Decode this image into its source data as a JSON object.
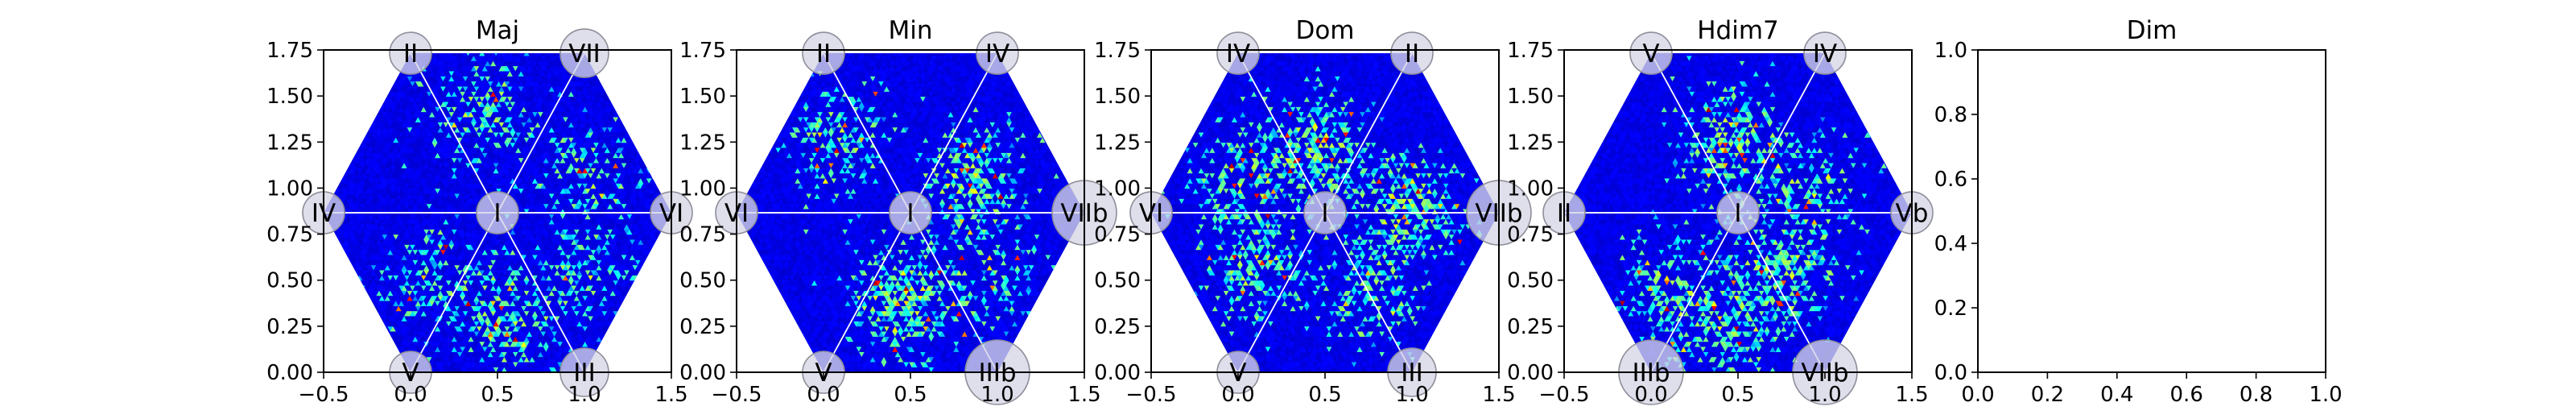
{
  "chart_data": [
    {
      "type": "heatmap",
      "title": "Maj",
      "xlim": [
        -0.5,
        1.5
      ],
      "ylim": [
        0.0,
        1.75
      ],
      "xticks": [
        "−0.5",
        "0.0",
        "0.5",
        "1.0",
        "1.5"
      ],
      "yticks": [
        "0.00",
        "0.25",
        "0.50",
        "0.75",
        "1.00",
        "1.25",
        "1.50",
        "1.75"
      ],
      "center_label": "I",
      "vertex_labels": [
        "II",
        "VII",
        "VI",
        "III",
        "V",
        "IV"
      ],
      "colormap": "jet",
      "hotspots": [
        {
          "x": 0.38,
          "y": 1.42,
          "w": 1.0
        },
        {
          "x": 1.03,
          "y": 1.05,
          "w": 0.8
        },
        {
          "x": 0.55,
          "y": 0.3,
          "w": 1.2
        },
        {
          "x": 0.1,
          "y": 0.5,
          "w": 0.8
        },
        {
          "x": 1.0,
          "y": 0.55,
          "w": 0.7
        }
      ]
    },
    {
      "type": "heatmap",
      "title": "Min",
      "xlim": [
        -0.5,
        1.5
      ],
      "ylim": [
        0.0,
        1.75
      ],
      "xticks": [
        "−0.5",
        "0.0",
        "0.5",
        "1.0",
        "1.5"
      ],
      "yticks": [
        "0.00",
        "0.25",
        "0.50",
        "0.75",
        "1.00",
        "1.25",
        "1.50",
        "1.75"
      ],
      "center_label": "I",
      "vertex_labels": [
        "II",
        "IV",
        "VIIb",
        "IIIb",
        "V",
        "VI"
      ],
      "colormap": "jet",
      "hotspots": [
        {
          "x": 0.45,
          "y": 0.4,
          "w": 1.6
        },
        {
          "x": 0.85,
          "y": 1.05,
          "w": 1.4
        },
        {
          "x": 0.1,
          "y": 1.25,
          "w": 1.0
        },
        {
          "x": 0.95,
          "y": 0.55,
          "w": 0.8
        }
      ]
    },
    {
      "type": "heatmap",
      "title": "Dom",
      "xlim": [
        -0.5,
        1.5
      ],
      "ylim": [
        0.0,
        1.75
      ],
      "xticks": [
        "−0.5",
        "0.0",
        "0.5",
        "1.0",
        "1.5"
      ],
      "yticks": [
        "0.00",
        "0.25",
        "0.50",
        "0.75",
        "1.00",
        "1.25",
        "1.50",
        "1.75"
      ],
      "center_label": "I",
      "vertex_labels": [
        "IV",
        "II",
        "VIIb",
        "III",
        "V",
        "VI"
      ],
      "colormap": "jet",
      "hotspots": [
        {
          "x": 0.45,
          "y": 1.2,
          "w": 1.5
        },
        {
          "x": 0.1,
          "y": 0.55,
          "w": 1.3
        },
        {
          "x": 1.0,
          "y": 0.9,
          "w": 1.3
        },
        {
          "x": 0.75,
          "y": 0.45,
          "w": 1.0
        },
        {
          "x": 0.0,
          "y": 1.05,
          "w": 1.0
        }
      ]
    },
    {
      "type": "heatmap",
      "title": "Hdim7",
      "xlim": [
        -0.5,
        1.5
      ],
      "ylim": [
        0.0,
        1.75
      ],
      "xticks": [
        "−0.5",
        "0.0",
        "0.5",
        "1.0",
        "1.5"
      ],
      "yticks": [
        "0.00",
        "0.25",
        "0.50",
        "0.75",
        "1.00",
        "1.25",
        "1.50",
        "1.75"
      ],
      "center_label": "I",
      "vertex_labels": [
        "V",
        "IV",
        "Vb",
        "VIIb",
        "IIIb",
        "II"
      ],
      "colormap": "jet",
      "hotspots": [
        {
          "x": 0.45,
          "y": 1.25,
          "w": 1.4
        },
        {
          "x": 0.75,
          "y": 0.55,
          "w": 1.4
        },
        {
          "x": 0.45,
          "y": 0.25,
          "w": 1.1
        },
        {
          "x": 0.1,
          "y": 0.45,
          "w": 0.9
        },
        {
          "x": 0.9,
          "y": 1.0,
          "w": 0.8
        }
      ]
    },
    {
      "type": "heatmap",
      "title": "Dim",
      "xlim": [
        0.0,
        1.0
      ],
      "ylim": [
        0.0,
        1.0
      ],
      "xticks": [
        "0.0",
        "0.2",
        "0.4",
        "0.6",
        "0.8",
        "1.0"
      ],
      "yticks": [
        "0.0",
        "0.2",
        "0.4",
        "0.6",
        "0.8",
        "1.0"
      ],
      "empty": true
    }
  ]
}
